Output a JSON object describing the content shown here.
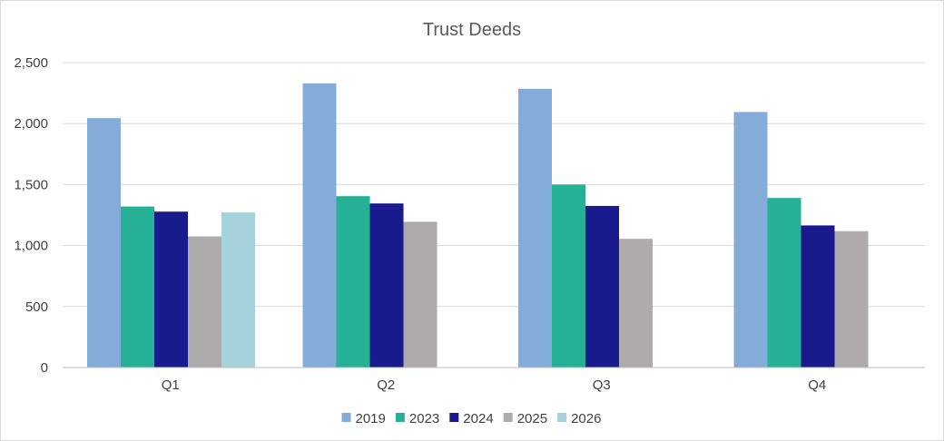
{
  "chart_data": {
    "type": "bar",
    "title": "Trust Deeds",
    "xlabel": "",
    "ylabel": "",
    "categories": [
      "Q1",
      "Q2",
      "Q3",
      "Q4"
    ],
    "ylim": [
      0,
      2500
    ],
    "yticks": [
      0,
      500,
      1000,
      1500,
      2000,
      2500
    ],
    "ytick_labels": [
      "0",
      "500",
      "1,000",
      "1,500",
      "2,000",
      "2,500"
    ],
    "grid": true,
    "legend_position": "bottom",
    "series": [
      {
        "name": "2019",
        "color": "#84ACD8",
        "values": [
          2045,
          2330,
          2285,
          2095
        ]
      },
      {
        "name": "2023",
        "color": "#26B095",
        "values": [
          1320,
          1405,
          1500,
          1390
        ]
      },
      {
        "name": "2024",
        "color": "#1A1A8F",
        "values": [
          1278,
          1345,
          1325,
          1165
        ]
      },
      {
        "name": "2025",
        "color": "#AFAAAB",
        "values": [
          1075,
          1195,
          1055,
          1118
        ]
      },
      {
        "name": "2026",
        "color": "#A6D2DB",
        "values": [
          1272,
          null,
          null,
          null
        ]
      }
    ]
  }
}
